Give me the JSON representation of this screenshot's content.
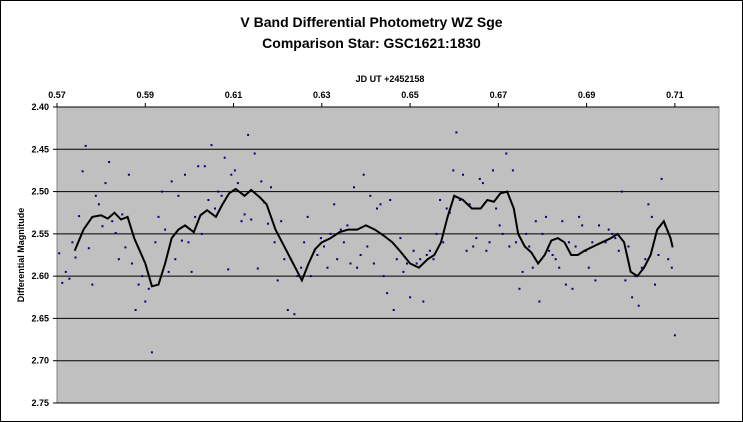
{
  "chart_data": {
    "type": "scatter",
    "title": "V Band Differential Photometry WZ Sge",
    "subtitle": "Comparison Star: GSC1621:1830",
    "xlabel": "JD UT +2452158",
    "ylabel": "Differential Magnitude",
    "xlim": [
      0.57,
      0.72
    ],
    "ylim": [
      2.4,
      2.75
    ],
    "y_inverted": true,
    "grid": "horizontal",
    "x_tick_labels": [
      "0.57",
      "0.59",
      "0.61",
      "0.63",
      "0.65",
      "0.67",
      "0.69",
      "0.71"
    ],
    "y_tick_labels": [
      "2.40",
      "2.45",
      "2.50",
      "2.55",
      "2.60",
      "2.65",
      "2.70",
      "2.75"
    ],
    "colors": {
      "plot_bg": "#c0c0c0",
      "points": "#000080",
      "smooth_line": "#000000",
      "grid": "#000000"
    },
    "series": [
      {
        "type": "scatter",
        "points": [
          [
            0.5705,
            2.573
          ],
          [
            0.5712,
            2.608
          ],
          [
            0.572,
            2.595
          ],
          [
            0.5728,
            2.603
          ],
          [
            0.5735,
            2.56
          ],
          [
            0.5742,
            2.578
          ],
          [
            0.575,
            2.529
          ],
          [
            0.5758,
            2.476
          ],
          [
            0.5765,
            2.446
          ],
          [
            0.5772,
            2.567
          ],
          [
            0.578,
            2.61
          ],
          [
            0.5788,
            2.505
          ],
          [
            0.5795,
            2.515
          ],
          [
            0.5803,
            2.541
          ],
          [
            0.581,
            2.49
          ],
          [
            0.5818,
            2.465
          ],
          [
            0.5825,
            2.535
          ],
          [
            0.5833,
            2.549
          ],
          [
            0.584,
            2.58
          ],
          [
            0.5848,
            2.527
          ],
          [
            0.5855,
            2.566
          ],
          [
            0.5863,
            2.48
          ],
          [
            0.587,
            2.585
          ],
          [
            0.5878,
            2.64
          ],
          [
            0.5885,
            2.61
          ],
          [
            0.5893,
            2.6
          ],
          [
            0.59,
            2.63
          ],
          [
            0.5908,
            2.615
          ],
          [
            0.5915,
            2.69
          ],
          [
            0.5923,
            2.56
          ],
          [
            0.593,
            2.53
          ],
          [
            0.5938,
            2.5
          ],
          [
            0.5945,
            2.545
          ],
          [
            0.5953,
            2.595
          ],
          [
            0.596,
            2.488
          ],
          [
            0.5968,
            2.58
          ],
          [
            0.5975,
            2.505
          ],
          [
            0.5983,
            2.558
          ],
          [
            0.599,
            2.48
          ],
          [
            0.5998,
            2.56
          ],
          [
            0.6005,
            2.595
          ],
          [
            0.6013,
            2.53
          ],
          [
            0.602,
            2.47
          ],
          [
            0.6028,
            2.55
          ],
          [
            0.6035,
            2.47
          ],
          [
            0.6043,
            2.51
          ],
          [
            0.605,
            2.445
          ],
          [
            0.6058,
            2.52
          ],
          [
            0.6065,
            2.5
          ],
          [
            0.6073,
            2.505
          ],
          [
            0.608,
            2.46
          ],
          [
            0.6088,
            2.592
          ],
          [
            0.6095,
            2.48
          ],
          [
            0.6103,
            2.475
          ],
          [
            0.611,
            2.49
          ],
          [
            0.6118,
            2.535
          ],
          [
            0.6125,
            2.527
          ],
          [
            0.6133,
            2.433
          ],
          [
            0.614,
            2.533
          ],
          [
            0.6148,
            2.455
          ],
          [
            0.6155,
            2.591
          ],
          [
            0.6163,
            2.488
          ],
          [
            0.617,
            2.513
          ],
          [
            0.6178,
            2.538
          ],
          [
            0.6185,
            2.495
          ],
          [
            0.6193,
            2.56
          ],
          [
            0.62,
            2.605
          ],
          [
            0.6208,
            2.535
          ],
          [
            0.6215,
            2.58
          ],
          [
            0.6223,
            2.64
          ],
          [
            0.623,
            2.58
          ],
          [
            0.6238,
            2.645
          ],
          [
            0.6245,
            2.6
          ],
          [
            0.6253,
            2.59
          ],
          [
            0.626,
            2.56
          ],
          [
            0.6268,
            2.53
          ],
          [
            0.6275,
            2.6
          ],
          [
            0.6283,
            2.57
          ],
          [
            0.629,
            2.575
          ],
          [
            0.6298,
            2.555
          ],
          [
            0.6305,
            2.565
          ],
          [
            0.6313,
            2.59
          ],
          [
            0.632,
            2.55
          ],
          [
            0.6328,
            2.515
          ],
          [
            0.6335,
            2.58
          ],
          [
            0.6343,
            2.545
          ],
          [
            0.635,
            2.56
          ],
          [
            0.6358,
            2.54
          ],
          [
            0.6365,
            2.585
          ],
          [
            0.6373,
            2.495
          ],
          [
            0.638,
            2.59
          ],
          [
            0.6388,
            2.575
          ],
          [
            0.6395,
            2.48
          ],
          [
            0.6403,
            2.565
          ],
          [
            0.641,
            2.505
          ],
          [
            0.6418,
            2.585
          ],
          [
            0.6425,
            2.52
          ],
          [
            0.6433,
            2.515
          ],
          [
            0.644,
            2.6
          ],
          [
            0.6448,
            2.62
          ],
          [
            0.6455,
            2.51
          ],
          [
            0.6463,
            2.64
          ],
          [
            0.647,
            2.58
          ],
          [
            0.6478,
            2.555
          ],
          [
            0.6485,
            2.595
          ],
          [
            0.6493,
            2.585
          ],
          [
            0.65,
            2.625
          ],
          [
            0.6508,
            2.57
          ],
          [
            0.6515,
            2.585
          ],
          [
            0.6523,
            2.58
          ],
          [
            0.653,
            2.63
          ],
          [
            0.6538,
            2.575
          ],
          [
            0.6545,
            2.57
          ],
          [
            0.6553,
            2.58
          ],
          [
            0.656,
            2.55
          ],
          [
            0.6568,
            2.51
          ],
          [
            0.6575,
            2.56
          ],
          [
            0.6583,
            2.52
          ],
          [
            0.659,
            2.525
          ],
          [
            0.6598,
            2.475
          ],
          [
            0.6605,
            2.43
          ],
          [
            0.6613,
            2.51
          ],
          [
            0.662,
            2.48
          ],
          [
            0.6628,
            2.57
          ],
          [
            0.6635,
            2.515
          ],
          [
            0.6643,
            2.565
          ],
          [
            0.665,
            2.555
          ],
          [
            0.6658,
            2.485
          ],
          [
            0.6665,
            2.49
          ],
          [
            0.6673,
            2.57
          ],
          [
            0.668,
            2.56
          ],
          [
            0.6688,
            2.475
          ],
          [
            0.6695,
            2.52
          ],
          [
            0.6703,
            2.54
          ],
          [
            0.671,
            2.55
          ],
          [
            0.6718,
            2.455
          ],
          [
            0.6725,
            2.565
          ],
          [
            0.6733,
            2.475
          ],
          [
            0.674,
            2.56
          ],
          [
            0.6748,
            2.615
          ],
          [
            0.6755,
            2.595
          ],
          [
            0.6763,
            2.55
          ],
          [
            0.677,
            2.565
          ],
          [
            0.6778,
            2.59
          ],
          [
            0.6785,
            2.535
          ],
          [
            0.6793,
            2.63
          ],
          [
            0.68,
            2.55
          ],
          [
            0.6808,
            2.53
          ],
          [
            0.6815,
            2.57
          ],
          [
            0.6823,
            2.575
          ],
          [
            0.683,
            2.58
          ],
          [
            0.6838,
            2.59
          ],
          [
            0.6845,
            2.535
          ],
          [
            0.6853,
            2.61
          ],
          [
            0.686,
            2.56
          ],
          [
            0.6868,
            2.615
          ],
          [
            0.6875,
            2.565
          ],
          [
            0.6883,
            2.53
          ],
          [
            0.689,
            2.54
          ],
          [
            0.6898,
            2.57
          ],
          [
            0.6905,
            2.59
          ],
          [
            0.6913,
            2.56
          ],
          [
            0.692,
            2.605
          ],
          [
            0.6928,
            2.54
          ],
          [
            0.6935,
            2.56
          ],
          [
            0.6943,
            2.56
          ],
          [
            0.695,
            2.545
          ],
          [
            0.6958,
            2.55
          ],
          [
            0.6965,
            2.555
          ],
          [
            0.6973,
            2.57
          ],
          [
            0.698,
            2.5
          ],
          [
            0.6988,
            2.605
          ],
          [
            0.6995,
            2.565
          ],
          [
            0.7003,
            2.625
          ],
          [
            0.701,
            2.6
          ],
          [
            0.7018,
            2.635
          ],
          [
            0.7025,
            2.59
          ],
          [
            0.7033,
            2.58
          ],
          [
            0.704,
            2.515
          ],
          [
            0.7048,
            2.53
          ],
          [
            0.7055,
            2.61
          ],
          [
            0.7063,
            2.575
          ],
          [
            0.707,
            2.485
          ],
          [
            0.7078,
            2.54
          ],
          [
            0.7085,
            2.58
          ],
          [
            0.7093,
            2.59
          ],
          [
            0.71,
            2.67
          ]
        ]
      },
      {
        "type": "line",
        "points": [
          [
            0.574,
            2.57
          ],
          [
            0.576,
            2.545
          ],
          [
            0.578,
            2.53
          ],
          [
            0.58,
            2.528
          ],
          [
            0.5815,
            2.532
          ],
          [
            0.583,
            2.525
          ],
          [
            0.5845,
            2.533
          ],
          [
            0.586,
            2.53
          ],
          [
            0.5875,
            2.555
          ],
          [
            0.5885,
            2.567
          ],
          [
            0.59,
            2.585
          ],
          [
            0.5915,
            2.612
          ],
          [
            0.593,
            2.61
          ],
          [
            0.5945,
            2.585
          ],
          [
            0.596,
            2.555
          ],
          [
            0.5975,
            2.545
          ],
          [
            0.599,
            2.54
          ],
          [
            0.601,
            2.548
          ],
          [
            0.6025,
            2.528
          ],
          [
            0.604,
            2.522
          ],
          [
            0.606,
            2.53
          ],
          [
            0.6075,
            2.515
          ],
          [
            0.609,
            2.502
          ],
          [
            0.6105,
            2.497
          ],
          [
            0.6125,
            2.505
          ],
          [
            0.614,
            2.498
          ],
          [
            0.616,
            2.507
          ],
          [
            0.6175,
            2.515
          ],
          [
            0.6195,
            2.545
          ],
          [
            0.621,
            2.56
          ],
          [
            0.6225,
            2.575
          ],
          [
            0.624,
            2.59
          ],
          [
            0.6255,
            2.605
          ],
          [
            0.627,
            2.585
          ],
          [
            0.6285,
            2.568
          ],
          [
            0.63,
            2.56
          ],
          [
            0.632,
            2.555
          ],
          [
            0.634,
            2.548
          ],
          [
            0.636,
            2.545
          ],
          [
            0.638,
            2.545
          ],
          [
            0.64,
            2.54
          ],
          [
            0.642,
            2.545
          ],
          [
            0.644,
            2.552
          ],
          [
            0.646,
            2.56
          ],
          [
            0.648,
            2.572
          ],
          [
            0.65,
            2.585
          ],
          [
            0.652,
            2.59
          ],
          [
            0.654,
            2.58
          ],
          [
            0.6555,
            2.575
          ],
          [
            0.657,
            2.56
          ],
          [
            0.6585,
            2.53
          ],
          [
            0.66,
            2.505
          ],
          [
            0.662,
            2.51
          ],
          [
            0.664,
            2.52
          ],
          [
            0.666,
            2.52
          ],
          [
            0.6675,
            2.51
          ],
          [
            0.669,
            2.512
          ],
          [
            0.6705,
            2.502
          ],
          [
            0.672,
            2.5
          ],
          [
            0.6735,
            2.52
          ],
          [
            0.6745,
            2.55
          ],
          [
            0.676,
            2.565
          ],
          [
            0.6775,
            2.572
          ],
          [
            0.679,
            2.585
          ],
          [
            0.6805,
            2.575
          ],
          [
            0.682,
            2.558
          ],
          [
            0.6835,
            2.555
          ],
          [
            0.685,
            2.56
          ],
          [
            0.6865,
            2.575
          ],
          [
            0.688,
            2.575
          ],
          [
            0.6895,
            2.57
          ],
          [
            0.6915,
            2.565
          ],
          [
            0.6935,
            2.56
          ],
          [
            0.6955,
            2.555
          ],
          [
            0.697,
            2.55
          ],
          [
            0.6985,
            2.56
          ],
          [
            0.7,
            2.595
          ],
          [
            0.7015,
            2.6
          ],
          [
            0.703,
            2.59
          ],
          [
            0.7045,
            2.575
          ],
          [
            0.706,
            2.545
          ],
          [
            0.7075,
            2.535
          ],
          [
            0.709,
            2.555
          ],
          [
            0.7095,
            2.566
          ]
        ]
      }
    ]
  }
}
